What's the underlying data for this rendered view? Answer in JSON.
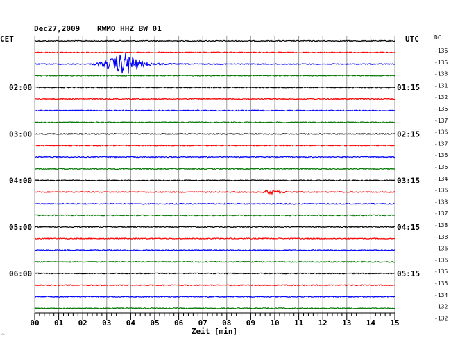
{
  "header": {
    "date": "Dec27,2009",
    "station": "RWMO HHZ BW 01",
    "left_tz": "CET",
    "right_tz": "UTC",
    "dc_label": "DC"
  },
  "footer": {
    "corner_mark": "^"
  },
  "chart_data": {
    "type": "line",
    "title": "",
    "xlabel": "Zeit [min]",
    "ylabel": "",
    "xlim": [
      0,
      15
    ],
    "grid": true,
    "x_ticks": [
      "00",
      "01",
      "02",
      "03",
      "04",
      "05",
      "06",
      "07",
      "08",
      "09",
      "10",
      "11",
      "12",
      "13",
      "14",
      "15"
    ],
    "trace_colors": [
      "#000000",
      "#ff0000",
      "#0000ff",
      "#007700"
    ],
    "time_labels_left": [
      {
        "row": 4,
        "label": "02:00"
      },
      {
        "row": 8,
        "label": "03:00"
      },
      {
        "row": 12,
        "label": "04:00"
      },
      {
        "row": 16,
        "label": "05:00"
      },
      {
        "row": 20,
        "label": "06:00"
      }
    ],
    "time_labels_right": [
      {
        "row": 4,
        "label": "01:15"
      },
      {
        "row": 8,
        "label": "02:15"
      },
      {
        "row": 12,
        "label": "03:15"
      },
      {
        "row": 16,
        "label": "04:15"
      },
      {
        "row": 20,
        "label": "05:15"
      }
    ],
    "dc_values": [
      "-136",
      "-135",
      "-133",
      "-131",
      "-132",
      "-136",
      "-137",
      "-136",
      "-137",
      "-136",
      "-136",
      "-134",
      "-136",
      "-133",
      "-137",
      "-138",
      "-138",
      "-136",
      "-136",
      "-135",
      "-135",
      "-134",
      "-132",
      "-132"
    ],
    "events": [
      {
        "row": 2,
        "start_min": 2.3,
        "peak_min": 3.85,
        "end_min": 7.0,
        "amplitude": 18
      },
      {
        "row": 13,
        "start_min": 9.4,
        "peak_min": 9.75,
        "end_min": 11.0,
        "amplitude": 3
      }
    ]
  }
}
